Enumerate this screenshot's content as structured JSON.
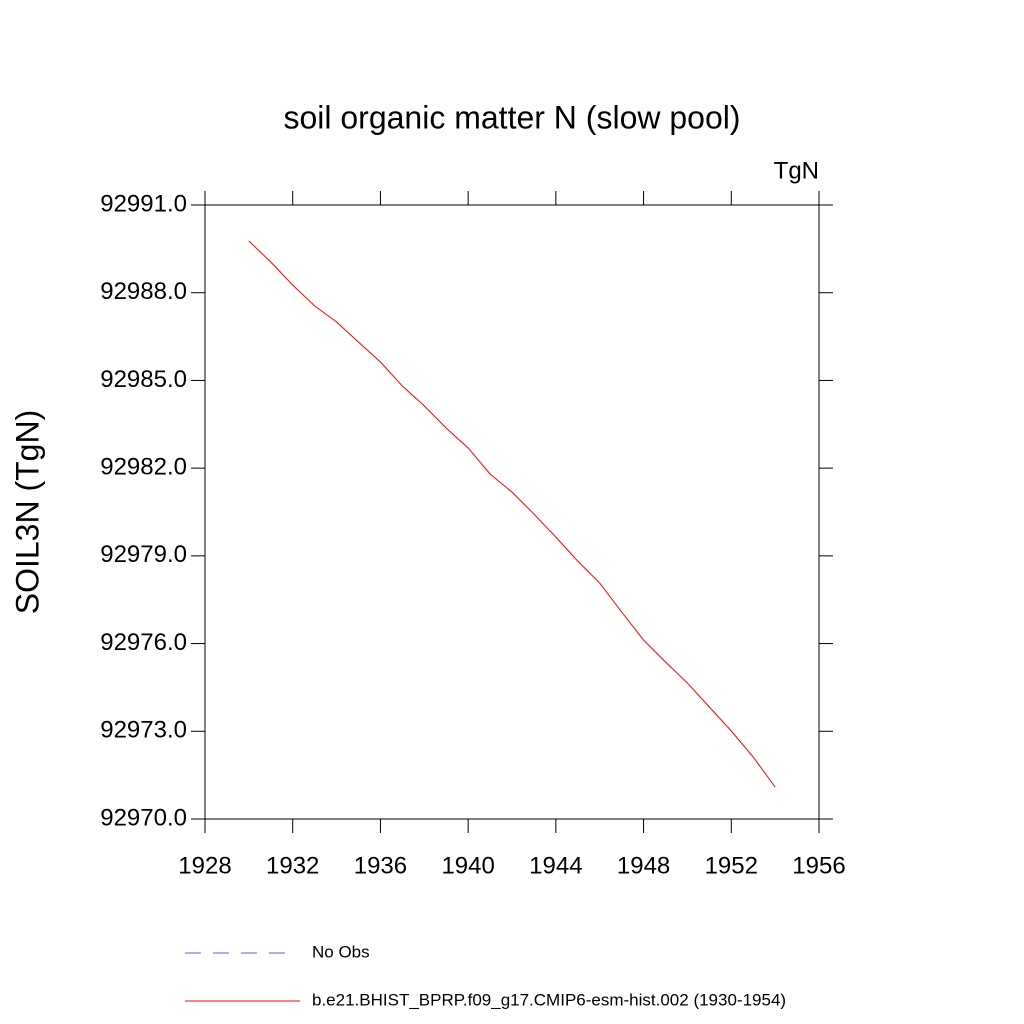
{
  "chart_data": {
    "type": "line",
    "title": "soil organic matter N (slow pool)",
    "units_label": "TgN",
    "ylabel": "SOIL3N  (TgN)",
    "x": [
      1930,
      1931,
      1932,
      1933,
      1934,
      1935,
      1936,
      1937,
      1938,
      1939,
      1940,
      1941,
      1942,
      1943,
      1944,
      1945,
      1946,
      1947,
      1948,
      1949,
      1950,
      1951,
      1952,
      1953,
      1954
    ],
    "series": [
      {
        "name": "b.e21.BHIST_BPRP.f09_g17.CMIP6-esm-hist.002 (1930-1954)",
        "color": "#ff0000",
        "values": [
          92989.77,
          92989.05,
          92988.26,
          92987.55,
          92987.0,
          92986.31,
          92985.63,
          92984.81,
          92984.13,
          92983.37,
          92982.69,
          92981.8,
          92981.18,
          92980.43,
          92979.64,
          92978.82,
          92978.07,
          92977.08,
          92976.12,
          92975.37,
          92974.65,
          92973.83,
          92973.01,
          92972.12,
          92971.09
        ]
      }
    ],
    "reference": {
      "name": "No Obs",
      "color": "#6a5acd",
      "dashed": true
    },
    "xlim": [
      1928,
      1956
    ],
    "xticks": [
      1928,
      1932,
      1936,
      1940,
      1944,
      1948,
      1952,
      1956
    ],
    "ylim": [
      92970,
      92991
    ],
    "yticks": [
      {
        "value": 92970,
        "label": "92970.0"
      },
      {
        "value": 92973,
        "label": "92973.0"
      },
      {
        "value": 92976,
        "label": "92976.0"
      },
      {
        "value": 92979,
        "label": "92979.0"
      },
      {
        "value": 92982,
        "label": "92982.0"
      },
      {
        "value": 92985,
        "label": "92985.0"
      },
      {
        "value": 92988,
        "label": "92988.0"
      },
      {
        "value": 92991,
        "label": "92991.0"
      }
    ],
    "grid": false
  }
}
